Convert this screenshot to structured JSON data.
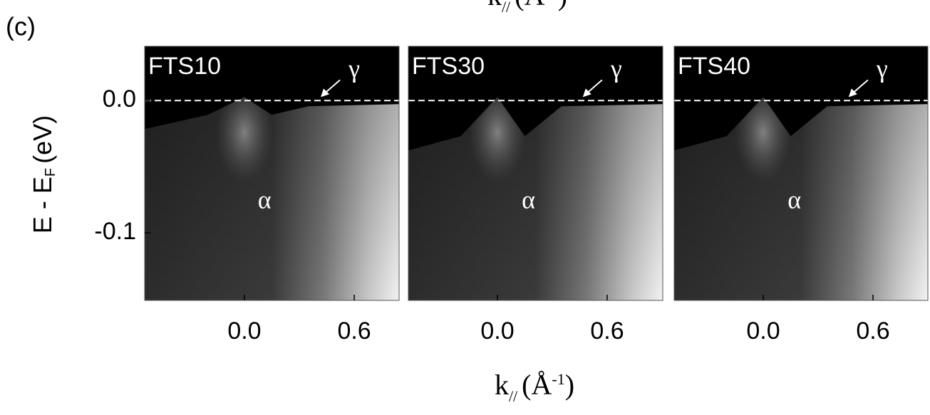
{
  "panel_label": "(c)",
  "ylabel": {
    "text": "E - E",
    "sub": "F",
    "unit": "(eV)"
  },
  "xlabel": {
    "text": "k",
    "sub": "//",
    "open": "(Å",
    "sup": "-1",
    "close": ")"
  },
  "chart_data": [
    {
      "type": "image",
      "title": "FTS10",
      "xlim": [
        -0.545,
        0.845
      ],
      "xticks": [
        {
          "value": 0,
          "label": "0.0"
        },
        0.6
      ],
      "ylim": [
        -0.151,
        0.041
      ],
      "yticks": [
        {
          "value": 0,
          "label": "0.0"
        },
        -0.1
      ],
      "fermi_level": 0,
      "annotations": [
        {
          "text": "α",
          "x": 0.11,
          "y": -0.077
        },
        {
          "text": "γ",
          "x": 0.6,
          "y": 0.022
        }
      ]
    },
    {
      "type": "image",
      "title": "FTS30",
      "xlim": [
        -0.487,
        0.904
      ],
      "xticks": [
        {
          "value": 0,
          "label": "0.0"
        },
        0.6
      ],
      "ylim": [
        -0.151,
        0.041
      ],
      "fermi_level": 0,
      "annotations": [
        {
          "text": "α",
          "x": 0.17,
          "y": -0.077
        },
        {
          "text": "γ",
          "x": 0.65,
          "y": 0.022
        }
      ]
    },
    {
      "type": "image",
      "title": "FTS40",
      "xlim": [
        -0.487,
        0.9
      ],
      "xticks": [
        {
          "value": 0,
          "label": "0.0"
        },
        0.6
      ],
      "ylim": [
        -0.151,
        0.041
      ],
      "fermi_level": 0,
      "annotations": [
        {
          "text": "α",
          "x": 0.17,
          "y": -0.077
        },
        {
          "text": "γ",
          "x": 0.65,
          "y": 0.022
        }
      ]
    }
  ]
}
